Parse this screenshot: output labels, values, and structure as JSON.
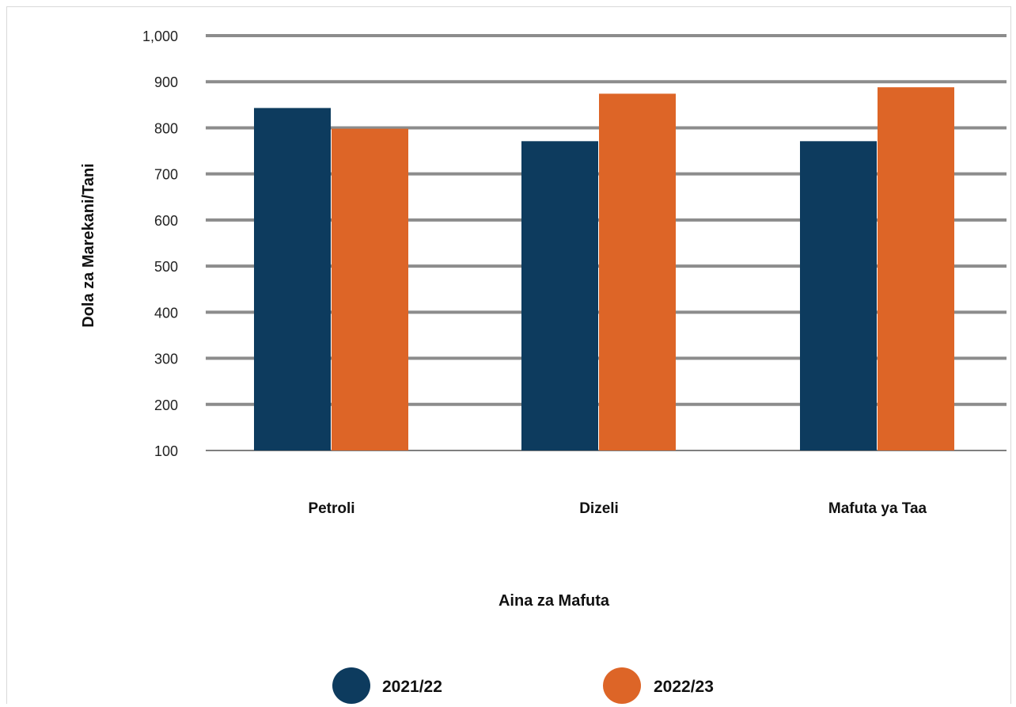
{
  "chart_data": {
    "type": "bar",
    "categories": [
      "Petroli",
      "Dizeli",
      "Mafuta ya Taa"
    ],
    "series": [
      {
        "name": "2021/22",
        "values": [
          843,
          771,
          771
        ],
        "color": "#0d3b5e"
      },
      {
        "name": "2022/23",
        "values": [
          798,
          874,
          888
        ],
        "color": "#dd6527"
      }
    ],
    "xlabel": "Aina za Mafuta",
    "ylabel": "Dola za Marekani/Tani",
    "ylim": [
      100,
      1000
    ],
    "yticks": [
      {
        "value": 100,
        "label": "100"
      },
      {
        "value": 200,
        "label": "200"
      },
      {
        "value": 300,
        "label": "300"
      },
      {
        "value": 400,
        "label": "400"
      },
      {
        "value": 500,
        "label": "500"
      },
      {
        "value": 600,
        "label": "600"
      },
      {
        "value": 700,
        "label": "700"
      },
      {
        "value": 800,
        "label": "800"
      },
      {
        "value": 900,
        "label": "900"
      },
      {
        "value": 1000,
        "label": "1,000"
      }
    ],
    "grid": true,
    "legend": "bottom"
  }
}
